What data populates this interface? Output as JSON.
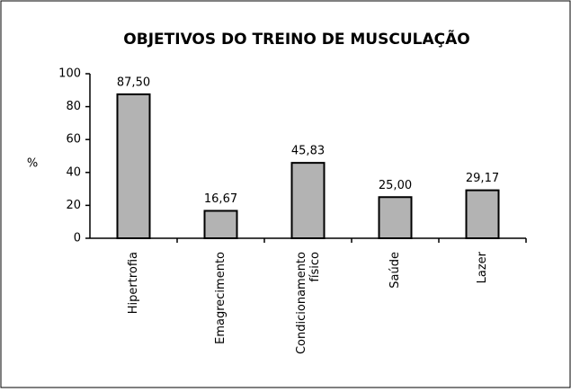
{
  "chart_data": {
    "type": "bar",
    "title": "OBJETIVOS DO TREINO DE MUSCULAÇÃO",
    "y_label": "%",
    "categories": [
      "Hipertrofia",
      "Emagrecimento",
      "Condicionamento físico",
      "Saúde",
      "Lazer"
    ],
    "values": [
      87.5,
      16.67,
      45.83,
      25,
      29.17
    ],
    "value_labels": [
      "87,50",
      "16,67",
      "45,83",
      "25,00",
      "29,17"
    ],
    "color": "#b3b3b3",
    "ylim": [
      0,
      100
    ],
    "yticks": [
      0,
      20,
      40,
      60,
      80,
      100
    ],
    "grid": false
  }
}
